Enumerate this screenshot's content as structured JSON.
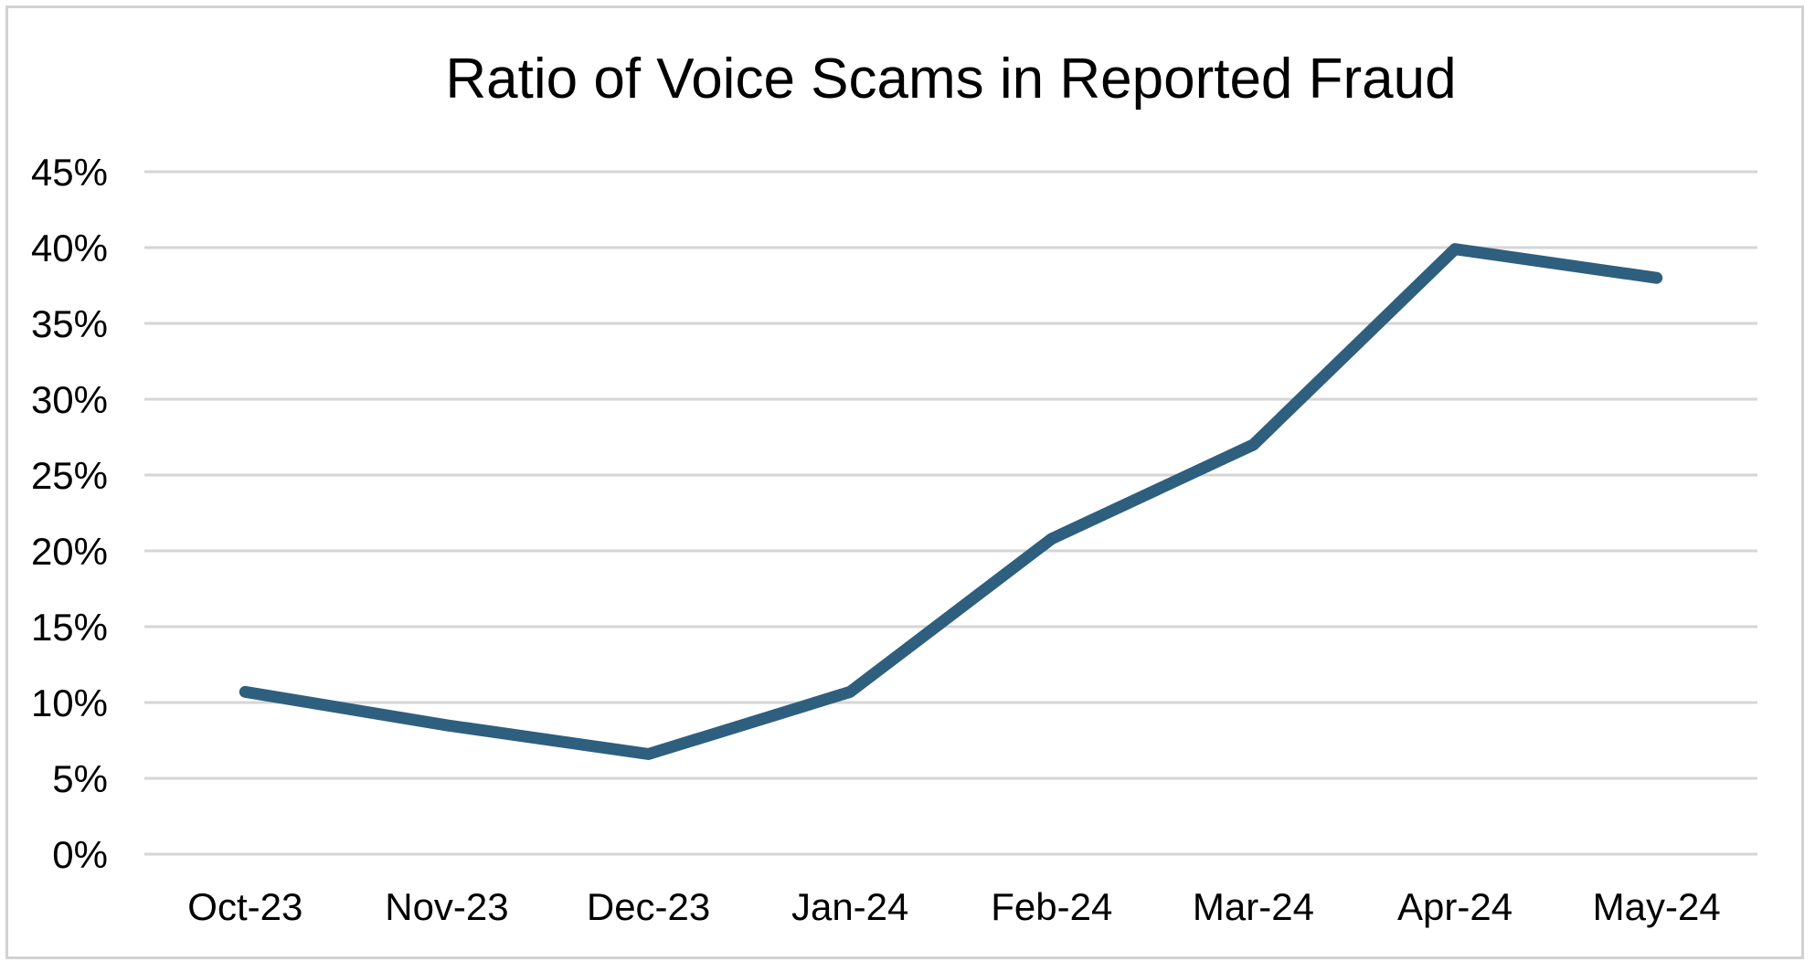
{
  "chart_data": {
    "type": "line",
    "title": "Ratio of Voice Scams in Reported Fraud",
    "categories": [
      "Oct-23",
      "Nov-23",
      "Dec-23",
      "Jan-24",
      "Feb-24",
      "Mar-24",
      "Apr-24",
      "May-24"
    ],
    "series": [
      {
        "name": "Ratio of voice scams in reported fraud",
        "values": [
          10.7,
          8.5,
          6.6,
          10.7,
          20.8,
          27.0,
          39.9,
          38.0
        ]
      }
    ],
    "xlabel": "",
    "ylabel": "",
    "ylim": [
      0,
      45
    ],
    "y_tick_step": 5,
    "y_tick_labels": [
      "0%",
      "5%",
      "10%",
      "15%",
      "20%",
      "25%",
      "30%",
      "35%",
      "40%",
      "45%"
    ],
    "grid": "horizontal",
    "legend": "none",
    "colors": {
      "line": "#2E5F7E",
      "gridline": "#D6D6D6",
      "frame_border": "#D2D2D2",
      "text": "#000000",
      "background": "#FFFFFF"
    }
  }
}
